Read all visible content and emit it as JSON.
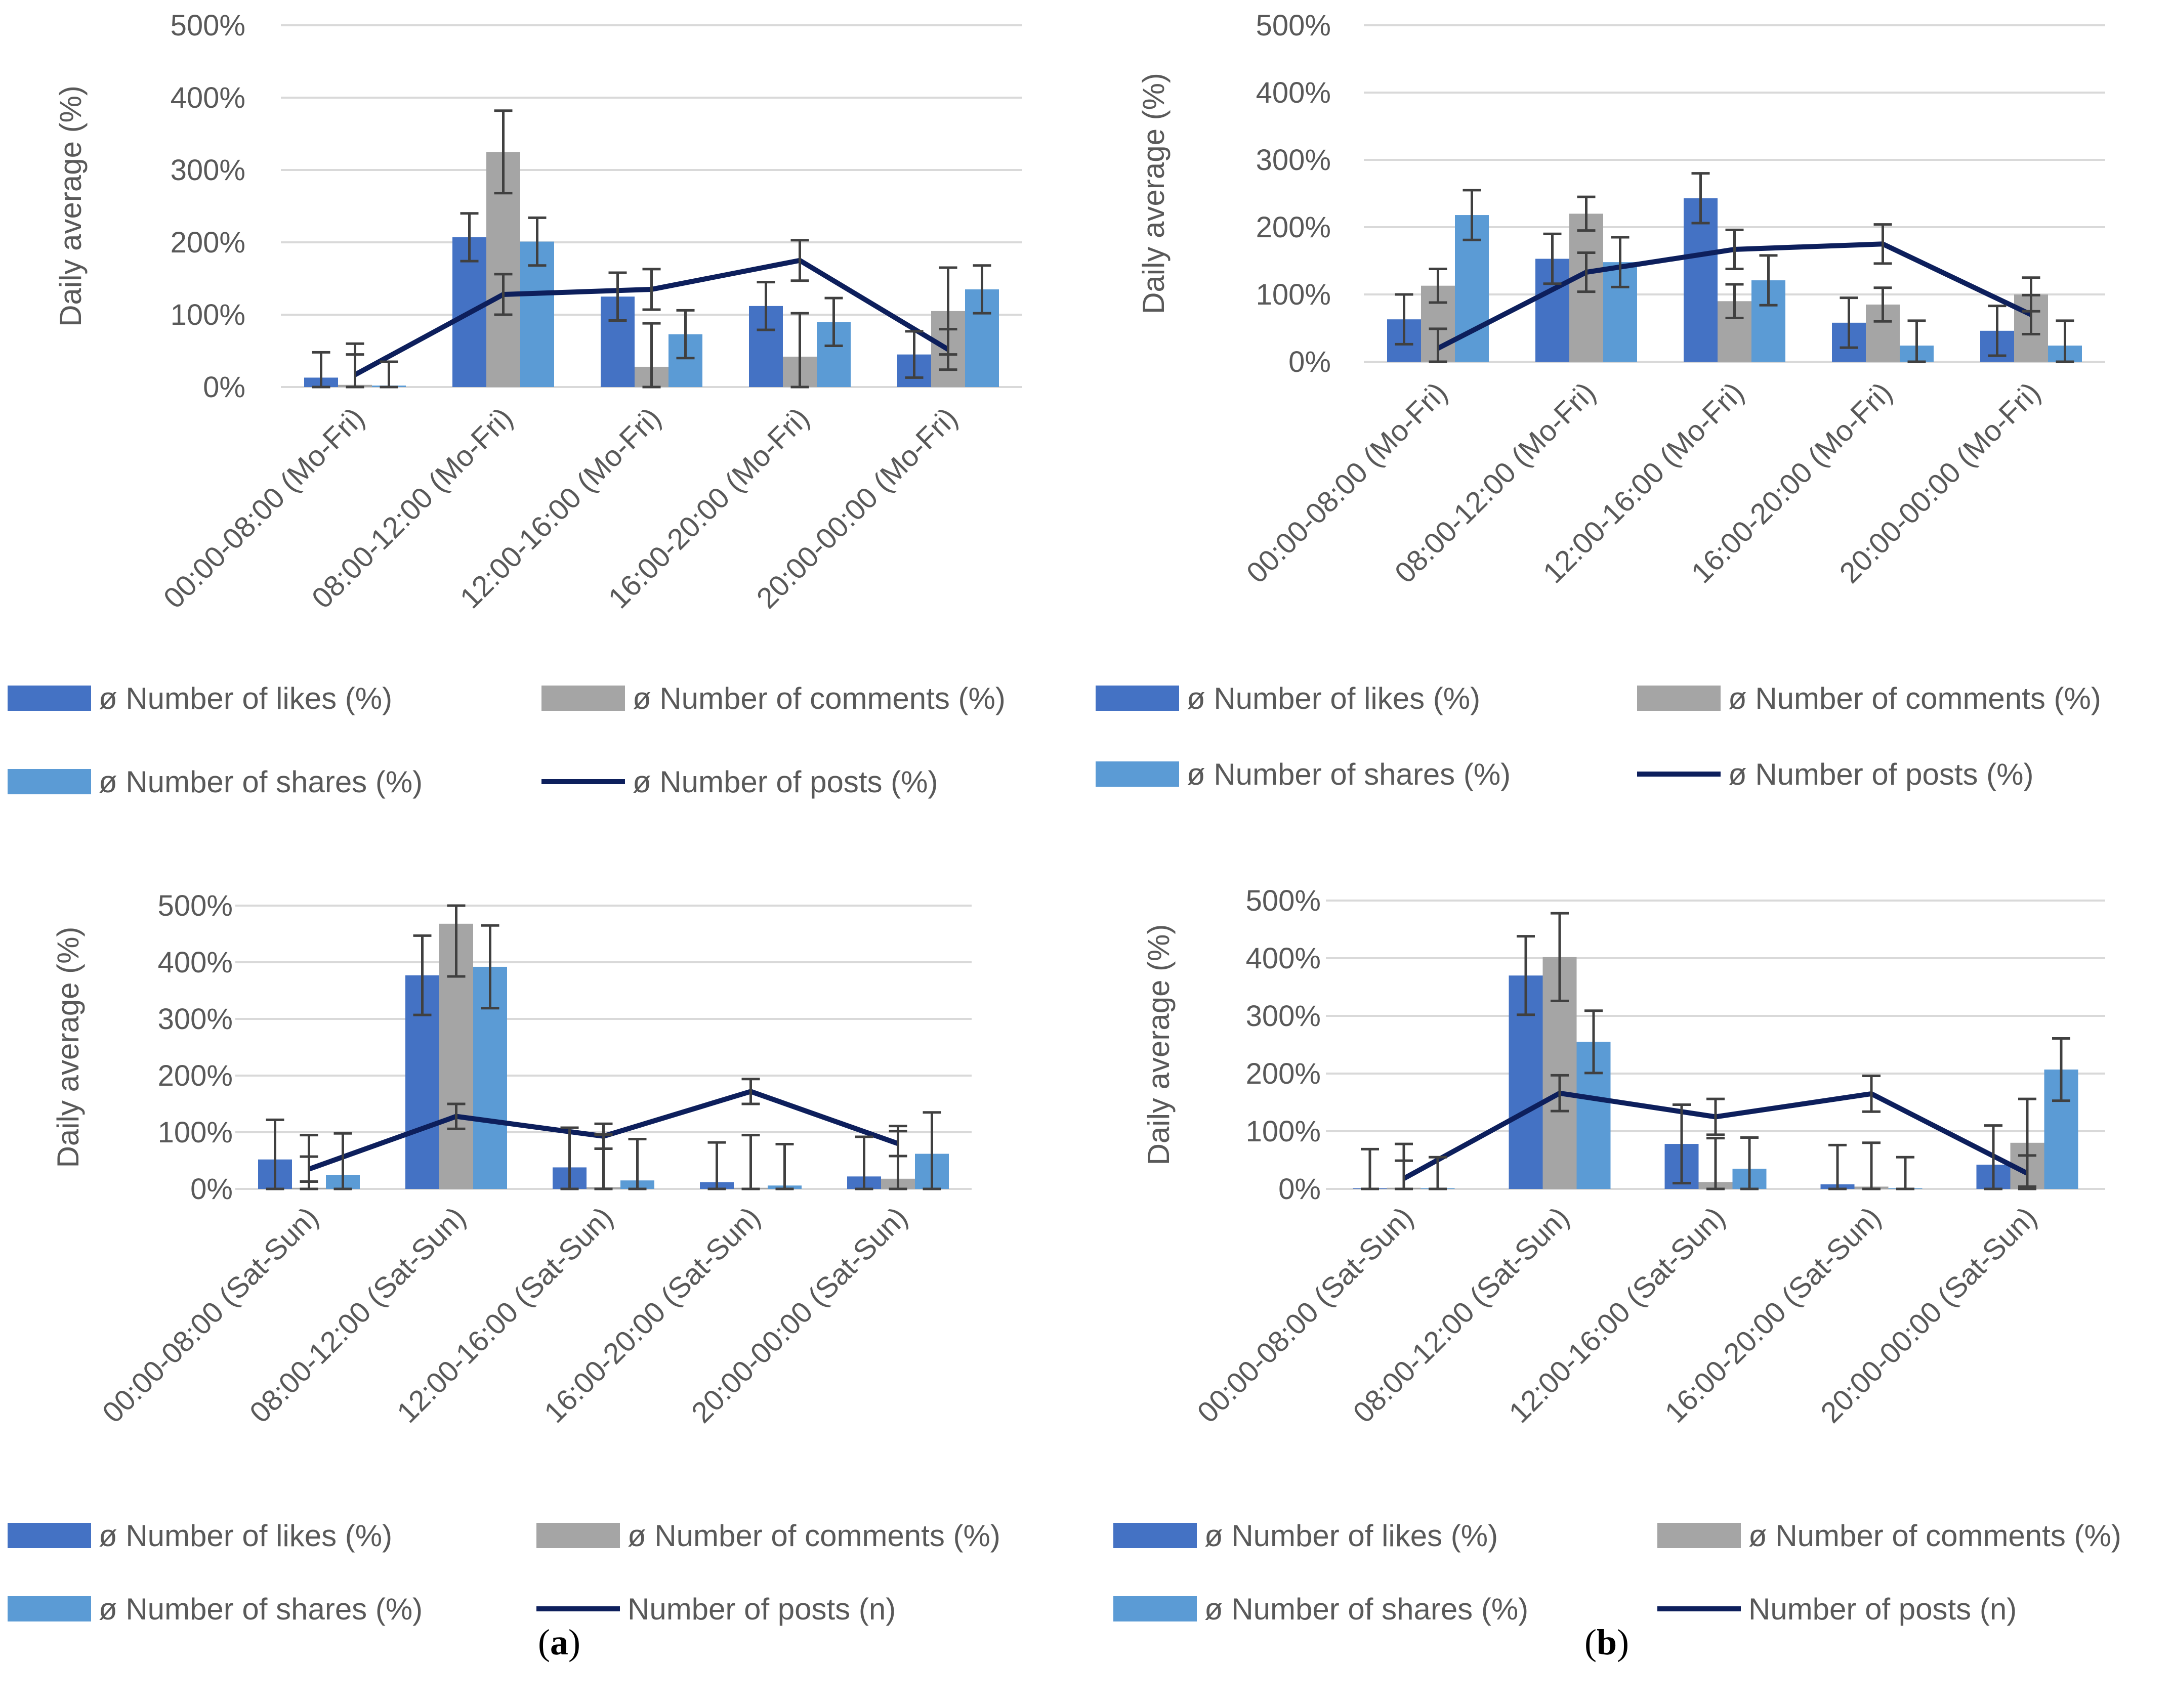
{
  "colors": {
    "likes": "#4472C4",
    "comments": "#A5A5A5",
    "shares": "#5B9BD5",
    "posts": "#0D1F5C",
    "grid": "#D9D9D9",
    "error_bar": "#404040",
    "text": "#595959"
  },
  "panel_labels": {
    "a": {
      "open": "(",
      "letter": "a",
      "close": ")"
    },
    "b": {
      "open": "(",
      "letter": "b",
      "close": ")"
    }
  },
  "chart_data": [
    {
      "id": "a-weekday",
      "type": "bar",
      "ylabel": "Daily average (%)",
      "ylim": [
        0,
        500
      ],
      "yticks": [
        "0%",
        "100%",
        "200%",
        "300%",
        "400%",
        "500%"
      ],
      "grid": true,
      "categories": [
        "00:00-08:00 (Mo-Fri)",
        "08:00-12:00 (Mo-Fri)",
        "12:00-16:00 (Mo-Fri)",
        "16:00-20:00 (Mo-Fri)",
        "20:00-00:00 (Mo-Fri)"
      ],
      "series": [
        {
          "name": "ø Number of likes (%)",
          "kind": "bar",
          "color_key": "likes",
          "values": [
            13,
            207,
            125,
            112,
            45
          ],
          "errors": [
            35,
            33,
            33,
            33,
            32
          ]
        },
        {
          "name": "ø Number of comments (%)",
          "kind": "bar",
          "color_key": "comments",
          "values": [
            3,
            325,
            28,
            42,
            105
          ],
          "errors": [
            57,
            57,
            60,
            60,
            60
          ]
        },
        {
          "name": "ø Number of shares (%)",
          "kind": "bar",
          "color_key": "shares",
          "values": [
            2,
            201,
            73,
            90,
            135
          ],
          "errors": [
            33,
            33,
            33,
            33,
            33
          ]
        },
        {
          "name": "ø Number of posts (%)",
          "kind": "line",
          "color_key": "posts",
          "values": [
            17,
            128,
            135,
            175,
            52
          ],
          "errors": [
            28,
            28,
            28,
            28,
            28
          ]
        }
      ]
    },
    {
      "id": "b-weekday",
      "type": "bar",
      "ylabel": "Daily average (%)",
      "ylim": [
        0,
        500
      ],
      "yticks": [
        "0%",
        "100%",
        "200%",
        "300%",
        "400%",
        "500%"
      ],
      "grid": true,
      "categories": [
        "00:00-08:00 (Mo-Fri)",
        "08:00-12:00 (Mo-Fri)",
        "12:00-16:00 (Mo-Fri)",
        "16:00-20:00 (Mo-Fri)",
        "20:00-00:00 (Mo-Fri)"
      ],
      "series": [
        {
          "name": "ø Number of likes (%)",
          "kind": "bar",
          "color_key": "likes",
          "values": [
            63,
            153,
            243,
            58,
            46
          ],
          "errors": [
            37,
            37,
            37,
            37,
            37
          ]
        },
        {
          "name": "ø Number of comments (%)",
          "kind": "bar",
          "color_key": "comments",
          "values": [
            113,
            220,
            90,
            85,
            100
          ],
          "errors": [
            25,
            25,
            25,
            25,
            25
          ]
        },
        {
          "name": "ø Number of shares (%)",
          "kind": "bar",
          "color_key": "shares",
          "values": [
            218,
            148,
            121,
            24,
            24
          ],
          "errors": [
            37,
            37,
            37,
            37,
            37
          ]
        },
        {
          "name": "ø Number of posts (%)",
          "kind": "line",
          "color_key": "posts",
          "values": [
            20,
            133,
            167,
            175,
            70
          ],
          "errors": [
            29,
            29,
            29,
            29,
            29
          ]
        }
      ]
    },
    {
      "id": "a-weekend",
      "type": "bar",
      "ylabel": "Daily average (%)",
      "ylim": [
        0,
        500
      ],
      "yticks": [
        "0%",
        "100%",
        "200%",
        "300%",
        "400%",
        "500%"
      ],
      "grid": true,
      "categories": [
        "00:00-08:00 (Sat-Sun)",
        "08:00-12:00 (Sat-Sun)",
        "12:00-16:00 (Sat-Sun)",
        "16:00-20:00 (Sat-Sun)",
        "20:00-00:00 (Sat-Sun)"
      ],
      "series": [
        {
          "name": "ø Number of likes (%)",
          "kind": "bar",
          "color_key": "likes",
          "values": [
            52,
            377,
            38,
            12,
            22
          ],
          "errors": [
            70,
            70,
            70,
            70,
            70
          ]
        },
        {
          "name": "ø Number of comments (%)",
          "kind": "bar",
          "color_key": "comments",
          "values": [
            2,
            468,
            3,
            2,
            18
          ],
          "errors": [
            93,
            93,
            93,
            93,
            93
          ]
        },
        {
          "name": "ø Number of shares (%)",
          "kind": "bar",
          "color_key": "shares",
          "values": [
            25,
            392,
            15,
            6,
            62
          ],
          "errors": [
            73,
            73,
            73,
            73,
            73
          ]
        },
        {
          "name": "Number of posts (n)",
          "kind": "line",
          "color_key": "posts",
          "values": [
            35,
            128,
            93,
            172,
            80
          ],
          "errors": [
            22,
            22,
            22,
            22,
            22
          ]
        }
      ]
    },
    {
      "id": "b-weekend",
      "type": "bar",
      "ylabel": "Daily average (%)",
      "ylim": [
        0,
        500
      ],
      "yticks": [
        "0%",
        "100%",
        "200%",
        "300%",
        "400%",
        "500%"
      ],
      "grid": true,
      "categories": [
        "00:00-08:00 (Sat-Sun)",
        "08:00-12:00 (Sat-Sun)",
        "12:00-16:00 (Sat-Sun)",
        "16:00-20:00 (Sat-Sun)",
        "20:00-00:00 (Sat-Sun)"
      ],
      "series": [
        {
          "name": "ø Number of likes (%)",
          "kind": "bar",
          "color_key": "likes",
          "values": [
            1,
            370,
            78,
            8,
            42
          ],
          "errors": [
            68,
            68,
            68,
            68,
            68
          ]
        },
        {
          "name": "ø Number of comments (%)",
          "kind": "bar",
          "color_key": "comments",
          "values": [
            2,
            402,
            12,
            4,
            80
          ],
          "errors": [
            76,
            76,
            76,
            76,
            76
          ]
        },
        {
          "name": "ø Number of shares (%)",
          "kind": "bar",
          "color_key": "shares",
          "values": [
            1,
            255,
            35,
            1,
            207
          ],
          "errors": [
            54,
            54,
            54,
            54,
            54
          ]
        },
        {
          "name": "Number of posts (n)",
          "kind": "line",
          "color_key": "posts",
          "values": [
            18,
            166,
            125,
            165,
            27
          ],
          "errors": [
            31,
            31,
            31,
            31,
            31
          ]
        }
      ]
    }
  ]
}
